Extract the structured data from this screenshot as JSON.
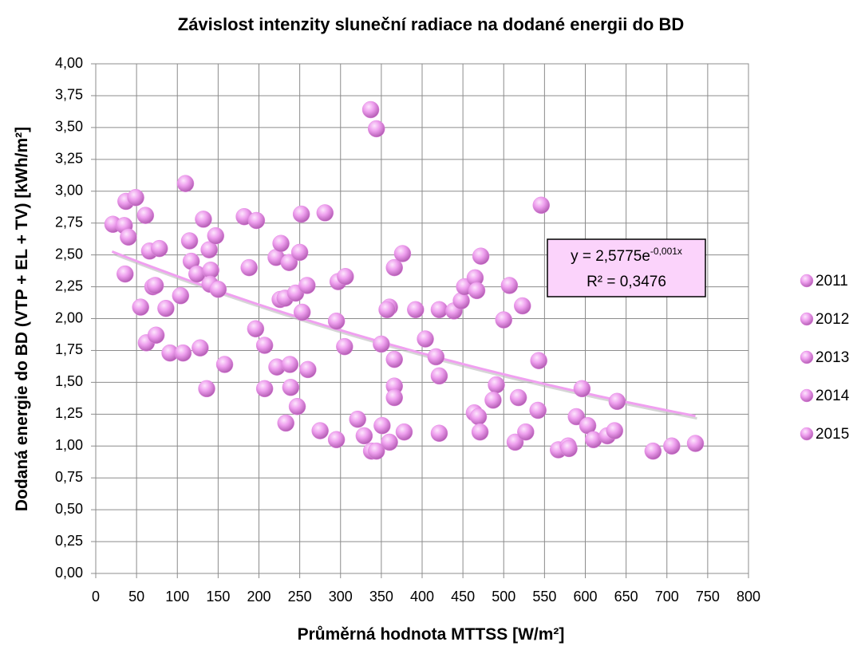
{
  "chart_data": {
    "type": "scatter",
    "title": "Závislost intenzity sluneční radiace na dodané energii do BD",
    "x_label": "Průměrná hodnota MTTSS [W/m²]",
    "y_label": "Dodaná energie do BD (VTP + EL + TV) [kWh/m²]",
    "xlim": [
      0,
      800
    ],
    "xticks": [
      0,
      50,
      100,
      150,
      200,
      250,
      300,
      350,
      400,
      450,
      500,
      550,
      600,
      650,
      700,
      750,
      800
    ],
    "ylim": [
      0,
      4
    ],
    "yticks": [
      {
        "value": 0,
        "label": "0,00"
      },
      {
        "value": 0.25,
        "label": "0,25"
      },
      {
        "value": 0.5,
        "label": "0,50"
      },
      {
        "value": 0.75,
        "label": "0,75"
      },
      {
        "value": 1,
        "label": "1,00"
      },
      {
        "value": 1.25,
        "label": "1,25"
      },
      {
        "value": 1.5,
        "label": "1,50"
      },
      {
        "value": 1.75,
        "label": "1,75"
      },
      {
        "value": 2,
        "label": "2,00"
      },
      {
        "value": 2.25,
        "label": "2,25"
      },
      {
        "value": 2.5,
        "label": "2,50"
      },
      {
        "value": 2.75,
        "label": "2,75"
      },
      {
        "value": 3,
        "label": "3,00"
      },
      {
        "value": 3.25,
        "label": "3,25"
      },
      {
        "value": 3.5,
        "label": "3,50"
      },
      {
        "value": 3.75,
        "label": "3,75"
      },
      {
        "value": 4,
        "label": "4,00"
      }
    ],
    "grid": true,
    "legend": "right",
    "series": [
      {
        "name": "2011",
        "color": "#e58ee5",
        "x": [
          21,
          37,
          49,
          35,
          40,
          36,
          61,
          55,
          62,
          66,
          78,
          70,
          73,
          74,
          86,
          91,
          104,
          110,
          107,
          115,
          117,
          124,
          132,
          128
        ],
        "values": [
          2.74,
          2.92,
          2.95,
          2.73,
          2.64,
          2.35,
          2.81,
          2.09,
          1.81,
          2.53,
          2.55,
          2.25,
          2.26,
          1.87,
          2.08,
          1.73,
          2.18,
          3.06,
          1.73,
          2.61,
          2.45,
          2.35,
          2.78,
          1.77
        ]
      },
      {
        "name": "2012",
        "color": "#e58ee5",
        "x": [
          139,
          141,
          140,
          136,
          147,
          150,
          158,
          182,
          188,
          197,
          196,
          207,
          207,
          221,
          227,
          222,
          226,
          232,
          237,
          245,
          250,
          252,
          253,
          259
        ],
        "values": [
          2.54,
          2.38,
          2.27,
          1.45,
          2.65,
          2.23,
          1.64,
          2.8,
          2.4,
          2.77,
          1.92,
          1.79,
          1.45,
          2.48,
          2.59,
          1.62,
          2.15,
          2.16,
          2.44,
          2.2,
          2.52,
          2.82,
          2.05,
          2.26
        ]
      },
      {
        "name": "2013",
        "color": "#e58ee5",
        "x": [
          260,
          238,
          239,
          247,
          233,
          281,
          275,
          297,
          306,
          305,
          295,
          295,
          321,
          329,
          337,
          344,
          338,
          344,
          350,
          351,
          360,
          360,
          357,
          366
        ],
        "values": [
          1.6,
          1.64,
          1.46,
          1.31,
          1.18,
          2.83,
          1.12,
          2.29,
          2.33,
          1.78,
          1.98,
          1.05,
          1.21,
          1.08,
          3.64,
          3.49,
          0.96,
          0.96,
          1.8,
          1.16,
          1.03,
          2.09,
          2.07,
          2.4
        ]
      },
      {
        "name": "2014",
        "color": "#e58ee5",
        "x": [
          376,
          366,
          366,
          366,
          378,
          392,
          404,
          417,
          421,
          421,
          421,
          439,
          448,
          452,
          465,
          467,
          472,
          464,
          469,
          471,
          491,
          487,
          500,
          507
        ],
        "values": [
          2.51,
          1.68,
          1.47,
          1.38,
          1.11,
          2.07,
          1.84,
          1.7,
          2.07,
          1.55,
          1.1,
          2.06,
          2.14,
          2.25,
          2.32,
          2.22,
          2.49,
          1.26,
          1.23,
          1.11,
          1.48,
          1.36,
          1.99,
          2.26
        ]
      },
      {
        "name": "2015",
        "color": "#e58ee5",
        "x": [
          514,
          518,
          523,
          527,
          542,
          546,
          543,
          567,
          579,
          580,
          589,
          596,
          603,
          610,
          627,
          636,
          639,
          683,
          706,
          735
        ],
        "values": [
          1.03,
          1.38,
          2.1,
          1.11,
          1.28,
          2.89,
          1.67,
          0.97,
          1.0,
          0.98,
          1.23,
          1.45,
          1.16,
          1.05,
          1.08,
          1.12,
          1.35,
          0.96,
          1.0,
          1.02
        ]
      }
    ],
    "trendline": {
      "a": 2.5775,
      "b": -0.001,
      "x_range": [
        20,
        735
      ],
      "color": "#f0a0f0",
      "equation_base": "y = 2,5775e",
      "equation_exponent": "-0,001x",
      "r2_label": "R² = 0,3476"
    }
  }
}
